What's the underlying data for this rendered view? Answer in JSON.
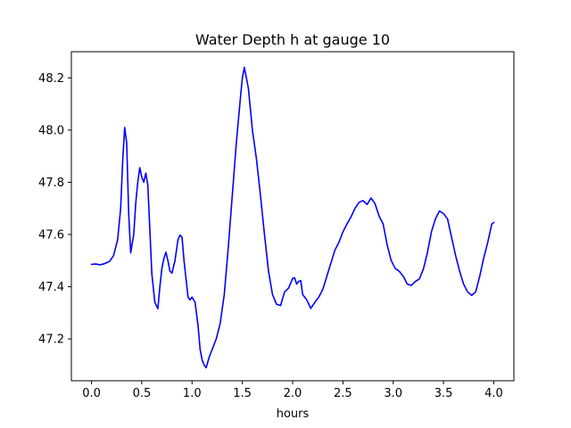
{
  "chart_data": {
    "type": "line",
    "title": "Water Depth h at gauge 10",
    "xlabel": "hours",
    "ylabel": "",
    "xlim": [
      -0.2,
      4.2
    ],
    "ylim": [
      47.04,
      48.3
    ],
    "xticks": [
      0.0,
      0.5,
      1.0,
      1.5,
      2.0,
      2.5,
      3.0,
      3.5,
      4.0
    ],
    "xtick_labels": [
      "0.0",
      "0.5",
      "1.0",
      "1.5",
      "2.0",
      "2.5",
      "3.0",
      "3.5",
      "4.0"
    ],
    "yticks": [
      47.2,
      47.4,
      47.6,
      47.8,
      48.0,
      48.2
    ],
    "ytick_labels": [
      "47.2",
      "47.4",
      "47.6",
      "47.8",
      "48.0",
      "48.2"
    ],
    "grid": false,
    "legend": "none",
    "series": [
      {
        "color": "#0000ff",
        "x": [
          0.0,
          0.05,
          0.08,
          0.12,
          0.18,
          0.22,
          0.26,
          0.29,
          0.31,
          0.33,
          0.35,
          0.37,
          0.39,
          0.42,
          0.44,
          0.46,
          0.48,
          0.5,
          0.52,
          0.54,
          0.56,
          0.58,
          0.6,
          0.63,
          0.66,
          0.68,
          0.7,
          0.72,
          0.74,
          0.76,
          0.78,
          0.8,
          0.83,
          0.86,
          0.88,
          0.9,
          0.92,
          0.94,
          0.96,
          0.98,
          1.0,
          1.03,
          1.06,
          1.08,
          1.1,
          1.12,
          1.14,
          1.17,
          1.2,
          1.24,
          1.28,
          1.32,
          1.36,
          1.4,
          1.44,
          1.48,
          1.5,
          1.52,
          1.56,
          1.6,
          1.64,
          1.68,
          1.72,
          1.76,
          1.8,
          1.84,
          1.88,
          1.92,
          1.96,
          2.0,
          2.02,
          2.04,
          2.06,
          2.08,
          2.1,
          2.14,
          2.18,
          2.22,
          2.26,
          2.3,
          2.34,
          2.38,
          2.42,
          2.46,
          2.5,
          2.54,
          2.58,
          2.62,
          2.66,
          2.7,
          2.74,
          2.78,
          2.82,
          2.86,
          2.9,
          2.94,
          2.98,
          3.02,
          3.06,
          3.1,
          3.14,
          3.18,
          3.22,
          3.26,
          3.3,
          3.34,
          3.38,
          3.42,
          3.46,
          3.5,
          3.54,
          3.58,
          3.62,
          3.66,
          3.7,
          3.74,
          3.78,
          3.82,
          3.86,
          3.9,
          3.94,
          3.98,
          4.0
        ],
        "y": [
          47.486,
          47.487,
          47.484,
          47.487,
          47.497,
          47.52,
          47.58,
          47.7,
          47.88,
          48.01,
          47.95,
          47.68,
          47.53,
          47.6,
          47.72,
          47.8,
          47.856,
          47.82,
          47.8,
          47.835,
          47.79,
          47.62,
          47.45,
          47.34,
          47.316,
          47.4,
          47.47,
          47.508,
          47.532,
          47.5,
          47.46,
          47.452,
          47.5,
          47.58,
          47.598,
          47.59,
          47.5,
          47.43,
          47.36,
          47.35,
          47.36,
          47.34,
          47.25,
          47.16,
          47.12,
          47.1,
          47.09,
          47.13,
          47.16,
          47.2,
          47.26,
          47.37,
          47.55,
          47.75,
          47.95,
          48.12,
          48.2,
          48.24,
          48.16,
          48.0,
          47.89,
          47.75,
          47.6,
          47.46,
          47.37,
          47.333,
          47.328,
          47.38,
          47.395,
          47.432,
          47.434,
          47.41,
          47.42,
          47.424,
          47.37,
          47.35,
          47.317,
          47.34,
          47.36,
          47.39,
          47.44,
          47.49,
          47.54,
          47.57,
          47.61,
          47.64,
          47.667,
          47.7,
          47.723,
          47.73,
          47.715,
          47.74,
          47.717,
          47.67,
          47.64,
          47.56,
          47.5,
          47.47,
          47.459,
          47.44,
          47.41,
          47.405,
          47.42,
          47.43,
          47.468,
          47.53,
          47.61,
          47.66,
          47.69,
          47.68,
          47.66,
          47.59,
          47.52,
          47.46,
          47.41,
          47.38,
          47.367,
          47.38,
          47.44,
          47.51,
          47.57,
          47.64,
          47.646
        ]
      }
    ]
  }
}
